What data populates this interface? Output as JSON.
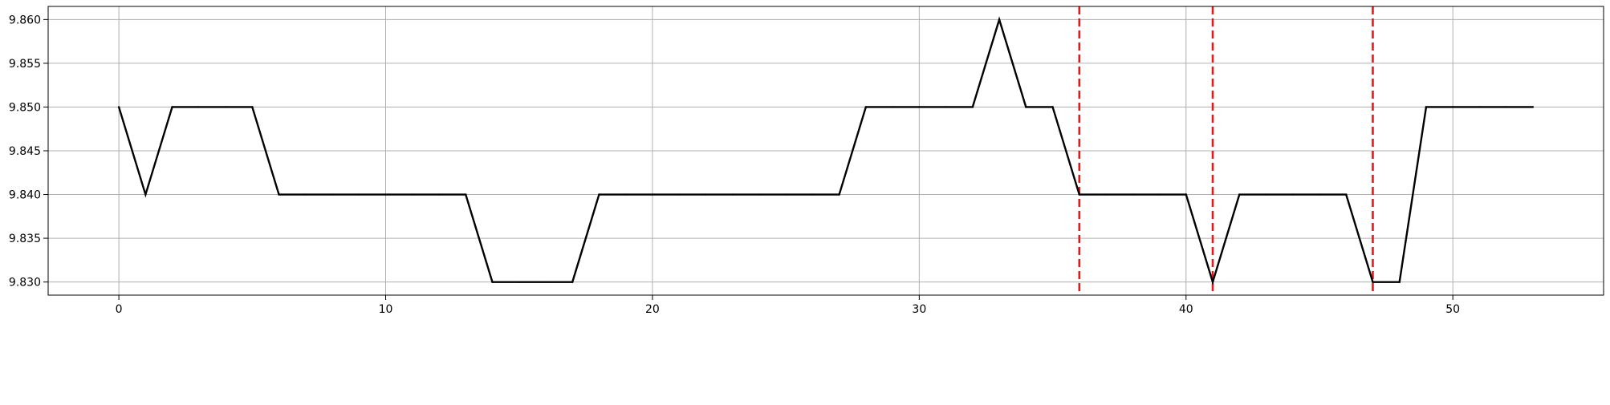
{
  "chart_data": {
    "type": "line",
    "title": "",
    "xlabel": "",
    "ylabel": "",
    "xlim": [
      -2.65,
      55.65
    ],
    "ylim": [
      9.8285,
      9.8615
    ],
    "grid": true,
    "x_ticks": [
      0,
      10,
      20,
      30,
      40,
      50
    ],
    "x_tick_labels": [
      "0",
      "10",
      "20",
      "30",
      "40",
      "50"
    ],
    "y_ticks": [
      9.83,
      9.835,
      9.84,
      9.845,
      9.85,
      9.855,
      9.86
    ],
    "y_tick_labels": [
      "9.830",
      "9.835",
      "9.840",
      "9.845",
      "9.850",
      "9.855",
      "9.860"
    ],
    "series": [
      {
        "color": "#000000",
        "style": "solid",
        "x": [
          0,
          1,
          2,
          3,
          4,
          5,
          6,
          7,
          8,
          9,
          10,
          11,
          12,
          13,
          14,
          15,
          16,
          17,
          18,
          19,
          20,
          21,
          22,
          23,
          24,
          25,
          26,
          27,
          28,
          29,
          30,
          31,
          32,
          33,
          34,
          35,
          36,
          37,
          38,
          39,
          40,
          41,
          42,
          43,
          44,
          45,
          46,
          47,
          48,
          49,
          50,
          51,
          52,
          53
        ],
        "values": [
          9.85,
          9.84,
          9.85,
          9.85,
          9.85,
          9.85,
          9.84,
          9.84,
          9.84,
          9.84,
          9.84,
          9.84,
          9.84,
          9.84,
          9.83,
          9.83,
          9.83,
          9.83,
          9.84,
          9.84,
          9.84,
          9.84,
          9.84,
          9.84,
          9.84,
          9.84,
          9.84,
          9.84,
          9.85,
          9.85,
          9.85,
          9.85,
          9.85,
          9.86,
          9.85,
          9.85,
          9.84,
          9.84,
          9.84,
          9.84,
          9.84,
          9.83,
          9.84,
          9.84,
          9.84,
          9.84,
          9.84,
          9.83,
          9.83,
          9.85,
          9.85,
          9.85,
          9.85,
          9.85
        ]
      }
    ],
    "vlines": {
      "x": [
        36,
        41,
        47
      ],
      "color": "#e31a1c",
      "style": "dashed"
    }
  }
}
